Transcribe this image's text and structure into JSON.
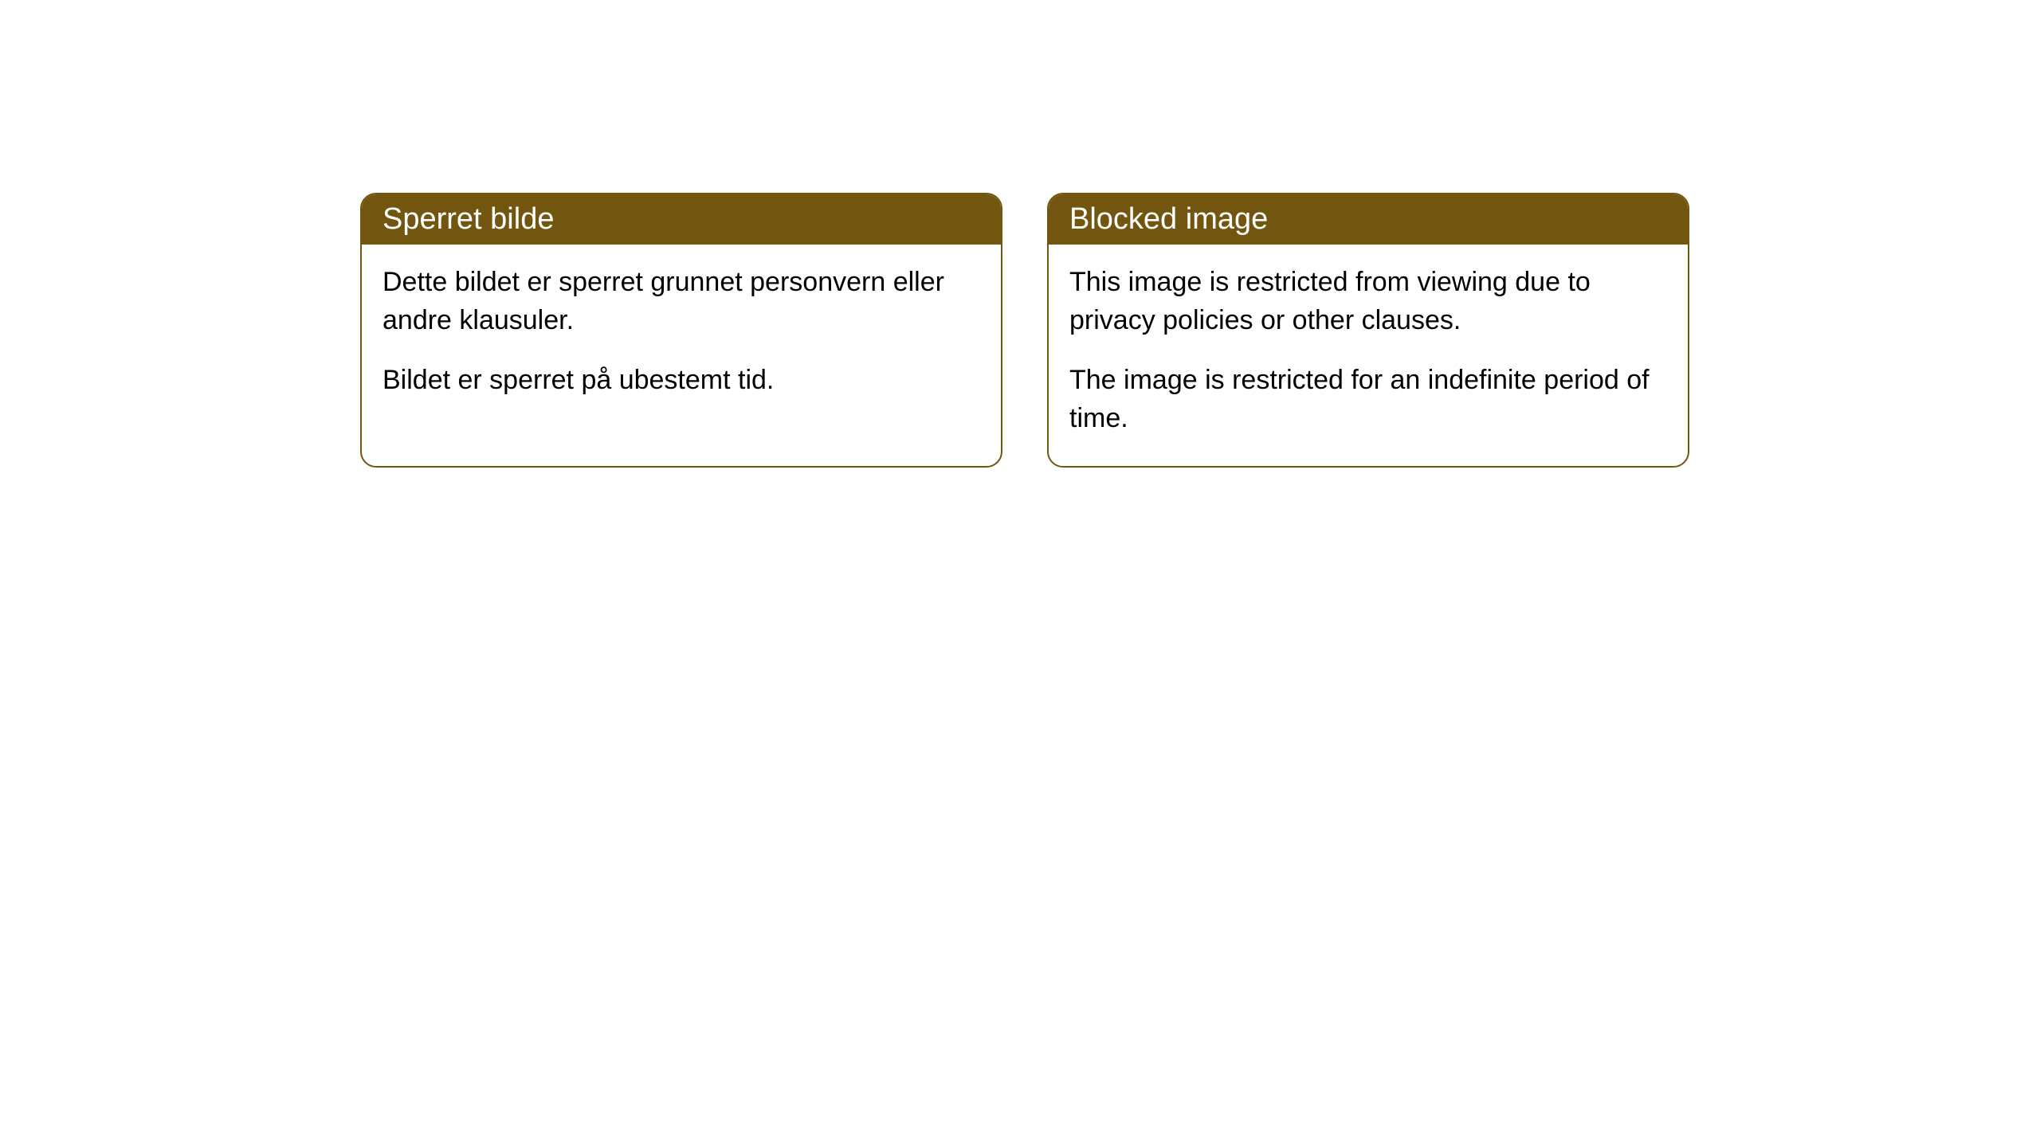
{
  "cards": [
    {
      "title": "Sperret bilde",
      "paragraph1": "Dette bildet er sperret grunnet personvern eller andre klausuler.",
      "paragraph2": "Bildet er sperret på ubestemt tid."
    },
    {
      "title": "Blocked image",
      "paragraph1": "This image is restricted from viewing due to privacy policies or other clauses.",
      "paragraph2": "The image is restricted for an indefinite period of time."
    }
  ],
  "styling": {
    "header_bg_color": "#725610",
    "header_text_color": "#ffffff",
    "border_color": "#725610",
    "body_bg_color": "#ffffff",
    "body_text_color": "#000000",
    "border_radius": "20px",
    "header_fontsize": "38px",
    "body_fontsize": "34px"
  }
}
